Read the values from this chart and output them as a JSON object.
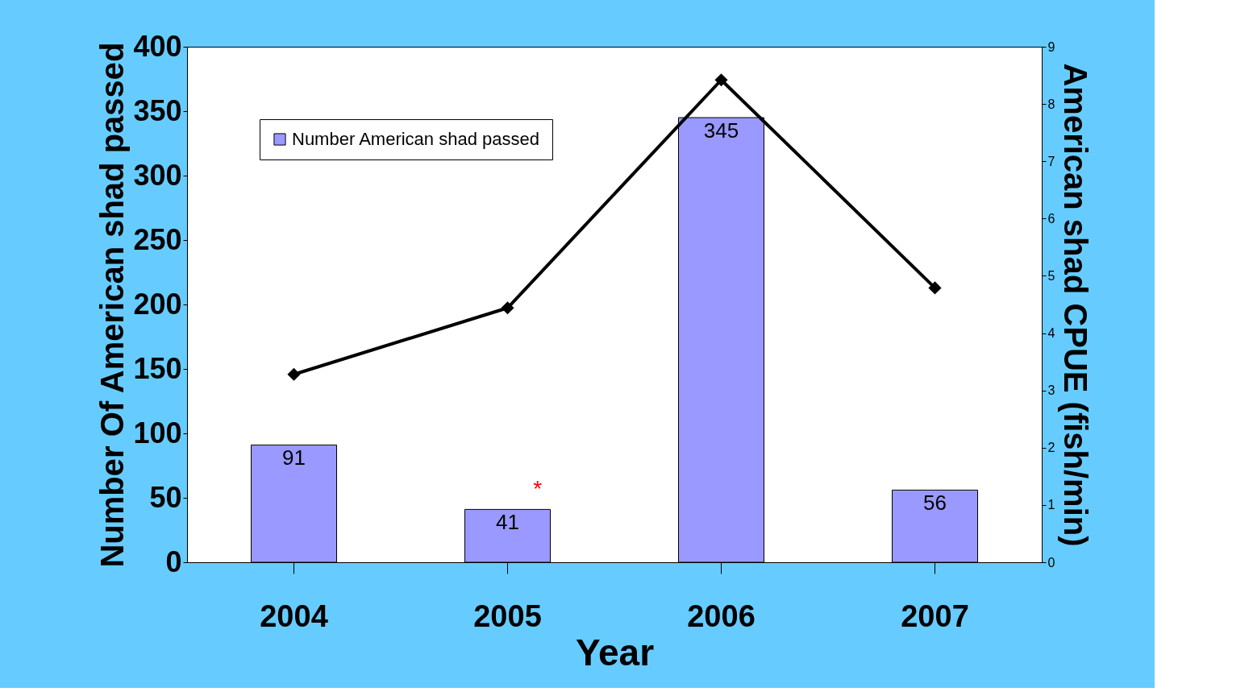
{
  "chart_data": {
    "type": "bar",
    "xlabel": "Year",
    "ylabel": "Number Of American shad passed",
    "y2label": "American shad CPUE (fish/min)",
    "categories": [
      "2004",
      "2005",
      "2006",
      "2007"
    ],
    "series": [
      {
        "name": "Number American shad passed",
        "color": "#9999ff",
        "values": [
          91,
          41,
          345,
          56
        ],
        "value_labels": [
          "91",
          "41",
          "345",
          "56"
        ]
      },
      {
        "type": "line",
        "axis": "y2",
        "color": "#000000",
        "marker": "diamond",
        "values": [
          3.28,
          4.44,
          8.42,
          4.79
        ]
      }
    ],
    "ylim": [
      0,
      400
    ],
    "yticks": [
      0,
      50,
      100,
      150,
      200,
      250,
      300,
      350,
      400
    ],
    "y2lim": [
      0,
      9
    ],
    "y2ticks": [
      0,
      1,
      2,
      3,
      4,
      5,
      6,
      7,
      8,
      9
    ],
    "legend": "top left",
    "grid": false,
    "annotations": [
      "*"
    ]
  }
}
